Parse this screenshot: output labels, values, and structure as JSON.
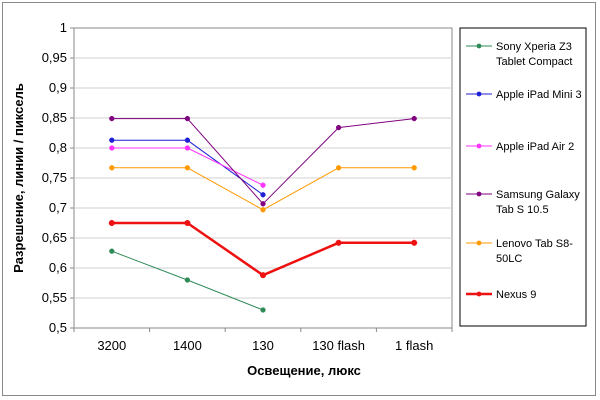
{
  "chart_data": {
    "type": "line",
    "title": "",
    "xlabel": "Освещение, люкс",
    "ylabel": "Разрешение, линии / пиксель",
    "categories": [
      "3200",
      "1400",
      "130",
      "130 flash",
      "1 flash"
    ],
    "ylim": [
      0.5,
      1.0
    ],
    "yticks": [
      0.5,
      0.55,
      0.6,
      0.65,
      0.7,
      0.75,
      0.8,
      0.85,
      0.9,
      0.95,
      1.0
    ],
    "ytick_labels": [
      "0,5",
      "0,55",
      "0,6",
      "0,65",
      "0,7",
      "0,75",
      "0,8",
      "0,85",
      "0,9",
      "0,95",
      "1"
    ],
    "grid": "horizontal",
    "legend_position": "right",
    "series": [
      {
        "name": "Sony Xperia Z3 Tablet Compact",
        "color": "#2e8b57",
        "values": [
          0.628,
          0.58,
          0.53,
          null,
          null
        ]
      },
      {
        "name": "Apple iPad Mini 3",
        "color": "#1f1fd6",
        "values": [
          0.813,
          0.813,
          0.722,
          null,
          null
        ]
      },
      {
        "name": "Apple iPad Air 2",
        "color": "#ff33ff",
        "values": [
          0.8,
          0.8,
          0.738,
          null,
          null
        ]
      },
      {
        "name": "Samsung Galaxy Tab S 10.5",
        "color": "#800080",
        "values": [
          0.849,
          0.849,
          0.707,
          0.834,
          0.849
        ]
      },
      {
        "name": "Lenovo Tab S8-50LC",
        "color": "#ff9900",
        "values": [
          0.767,
          0.767,
          0.697,
          0.767,
          0.767
        ]
      },
      {
        "name": "Nexus 9",
        "color": "#ee1111",
        "values": [
          0.675,
          0.675,
          0.588,
          0.642,
          0.642
        ],
        "bold": true
      }
    ]
  }
}
